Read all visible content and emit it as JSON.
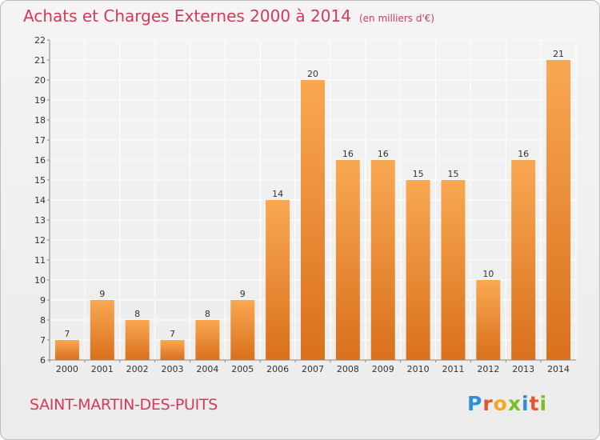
{
  "chart_data": {
    "type": "bar",
    "title": "Achats et Charges Externes 2000 à 2014",
    "subtitle": "(en milliers d'€)",
    "categories": [
      "2000",
      "2001",
      "2002",
      "2003",
      "2004",
      "2005",
      "2006",
      "2007",
      "2008",
      "2009",
      "2010",
      "2011",
      "2012",
      "2013",
      "2014"
    ],
    "values": [
      7,
      9,
      8,
      7,
      8,
      9,
      14,
      20,
      16,
      16,
      15,
      15,
      10,
      16,
      21
    ],
    "ylim": [
      6,
      22
    ],
    "yticks": [
      6,
      7,
      8,
      9,
      10,
      11,
      12,
      13,
      14,
      15,
      16,
      17,
      18,
      19,
      20,
      21,
      22
    ],
    "grid": true,
    "colors": {
      "bar_light": "#f9a852",
      "bar_dark": "#d9701c",
      "grid": "#ffffff"
    }
  },
  "commune": "SAINT-MARTIN-DES-PUITS",
  "logo": {
    "letters": [
      "P",
      "r",
      "o",
      "x",
      "i",
      "t",
      "i"
    ]
  }
}
